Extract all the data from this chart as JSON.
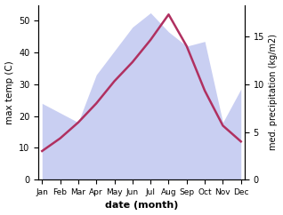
{
  "months": [
    "Jan",
    "Feb",
    "Mar",
    "Apr",
    "May",
    "Jun",
    "Jul",
    "Aug",
    "Sep",
    "Oct",
    "Nov",
    "Dec"
  ],
  "month_positions": [
    1,
    2,
    3,
    4,
    5,
    6,
    7,
    8,
    9,
    10,
    11,
    12
  ],
  "temp_line": [
    9,
    13,
    18,
    24,
    31,
    37,
    44,
    52,
    42,
    28,
    17,
    12
  ],
  "precip_fill": [
    8,
    7,
    6,
    11,
    13.5,
    16,
    17.5,
    15.5,
    14,
    14.5,
    6,
    9.5
  ],
  "temp_ylim": [
    0,
    55
  ],
  "precip_ylim": [
    0,
    18.33
  ],
  "line_color": "#b03060",
  "fill_color": "#b8bfee",
  "fill_alpha": 0.75,
  "xlabel": "date (month)",
  "ylabel_left": "max temp (C)",
  "ylabel_right": "med. precipitation (kg/m2)",
  "right_yticks": [
    0,
    5,
    10,
    15
  ],
  "left_yticks": [
    0,
    10,
    20,
    30,
    40,
    50
  ],
  "background_color": "#ffffff"
}
